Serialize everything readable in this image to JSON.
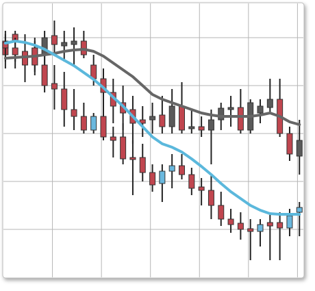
{
  "chart_data": {
    "type": "candlestick",
    "x": [
      0,
      1,
      2,
      3,
      4,
      5,
      6,
      7,
      8,
      9,
      10,
      11,
      12,
      13,
      14,
      15,
      16,
      17,
      18,
      19,
      20,
      21,
      22,
      23,
      24,
      25,
      26,
      27,
      28,
      29,
      30
    ],
    "xlim": [
      -0.2,
      30.4
    ],
    "xticks": [
      4.8,
      9.8,
      14.8,
      19.8,
      24.8,
      29.8
    ],
    "ylim": [
      0,
      400
    ],
    "yticks": [
      70,
      140,
      210,
      280,
      350
    ],
    "grid": true,
    "series": [
      {
        "up_color": "#5a5a5a",
        "down_color": "#c0464f",
        "open": [
          345,
          355,
          320,
          335,
          325,
          353,
          338,
          340,
          345,
          310,
          290,
          270,
          255,
          245,
          230,
          230,
          237,
          220,
          250,
          217,
          220,
          215,
          230,
          245,
          248,
          215,
          240,
          248,
          260,
          210,
          177
        ],
        "high": [
          360,
          360,
          355,
          350,
          360,
          375,
          360,
          365,
          360,
          325,
          305,
          290,
          280,
          265,
          250,
          255,
          265,
          275,
          285,
          245,
          235,
          245,
          255,
          265,
          275,
          260,
          260,
          290,
          290,
          220,
          230
        ],
        "low": [
          305,
          315,
          295,
          300,
          310,
          325,
          315,
          310,
          320,
          280,
          240,
          225,
          215,
          195,
          205,
          210,
          210,
          210,
          210,
          210,
          205,
          165,
          215,
          220,
          210,
          210,
          225,
          240,
          205,
          170,
          150
        ],
        "close": [
          325,
          345,
          325,
          310,
          350,
          340,
          343,
          345,
          325,
          290,
          270,
          250,
          240,
          225,
          225,
          235,
          220,
          250,
          215,
          220,
          215,
          230,
          247,
          248,
          215,
          255,
          250,
          260,
          210,
          180,
          200
        ]
      },
      {
        "up_color": "#6ab8de",
        "down_color": "#c0464f",
        "open": [
          343,
          335,
          330,
          335,
          310,
          283,
          275,
          245,
          235,
          215,
          235,
          205,
          205,
          175,
          175,
          153,
          137,
          155,
          163,
          150,
          132,
          127,
          105,
          85,
          79,
          71,
          67,
          80,
          80,
          72,
          95
        ],
        "high": [
          355,
          350,
          345,
          345,
          325,
          310,
          300,
          275,
          255,
          240,
          265,
          220,
          225,
          200,
          195,
          165,
          165,
          180,
          180,
          160,
          145,
          150,
          125,
          100,
          95,
          85,
          85,
          95,
          95,
          100,
          110
        ],
        "low": [
          315,
          305,
          285,
          295,
          270,
          245,
          220,
          215,
          210,
          210,
          200,
          175,
          165,
          120,
          140,
          125,
          110,
          130,
          143,
          120,
          105,
          85,
          75,
          65,
          55,
          25,
          45,
          25,
          25,
          60,
          60
        ],
        "close": [
          335,
          325,
          310,
          310,
          280,
          275,
          245,
          235,
          215,
          235,
          205,
          200,
          173,
          172,
          153,
          135,
          155,
          163,
          150,
          130,
          127,
          105,
          85,
          77,
          70,
          67,
          77,
          75,
          72,
          90,
          102
        ]
      }
    ],
    "lines": [
      {
        "color": "#666666",
        "values": [
          320,
          321,
          322,
          323,
          325,
          327,
          330,
          332,
          333,
          330,
          323,
          313,
          303,
          293,
          280,
          267,
          260,
          255,
          250,
          245,
          240,
          237,
          235,
          235,
          235,
          235,
          237,
          240,
          235,
          227,
          223
        ]
      },
      {
        "color": "#5bb8dc",
        "values": [
          342,
          345,
          343,
          339,
          333,
          325,
          317,
          309,
          299,
          289,
          277,
          263,
          250,
          235,
          220,
          205,
          195,
          190,
          183,
          173,
          162,
          150,
          137,
          125,
          115,
          105,
          98,
          93,
          92,
          92,
          92
        ]
      }
    ]
  }
}
